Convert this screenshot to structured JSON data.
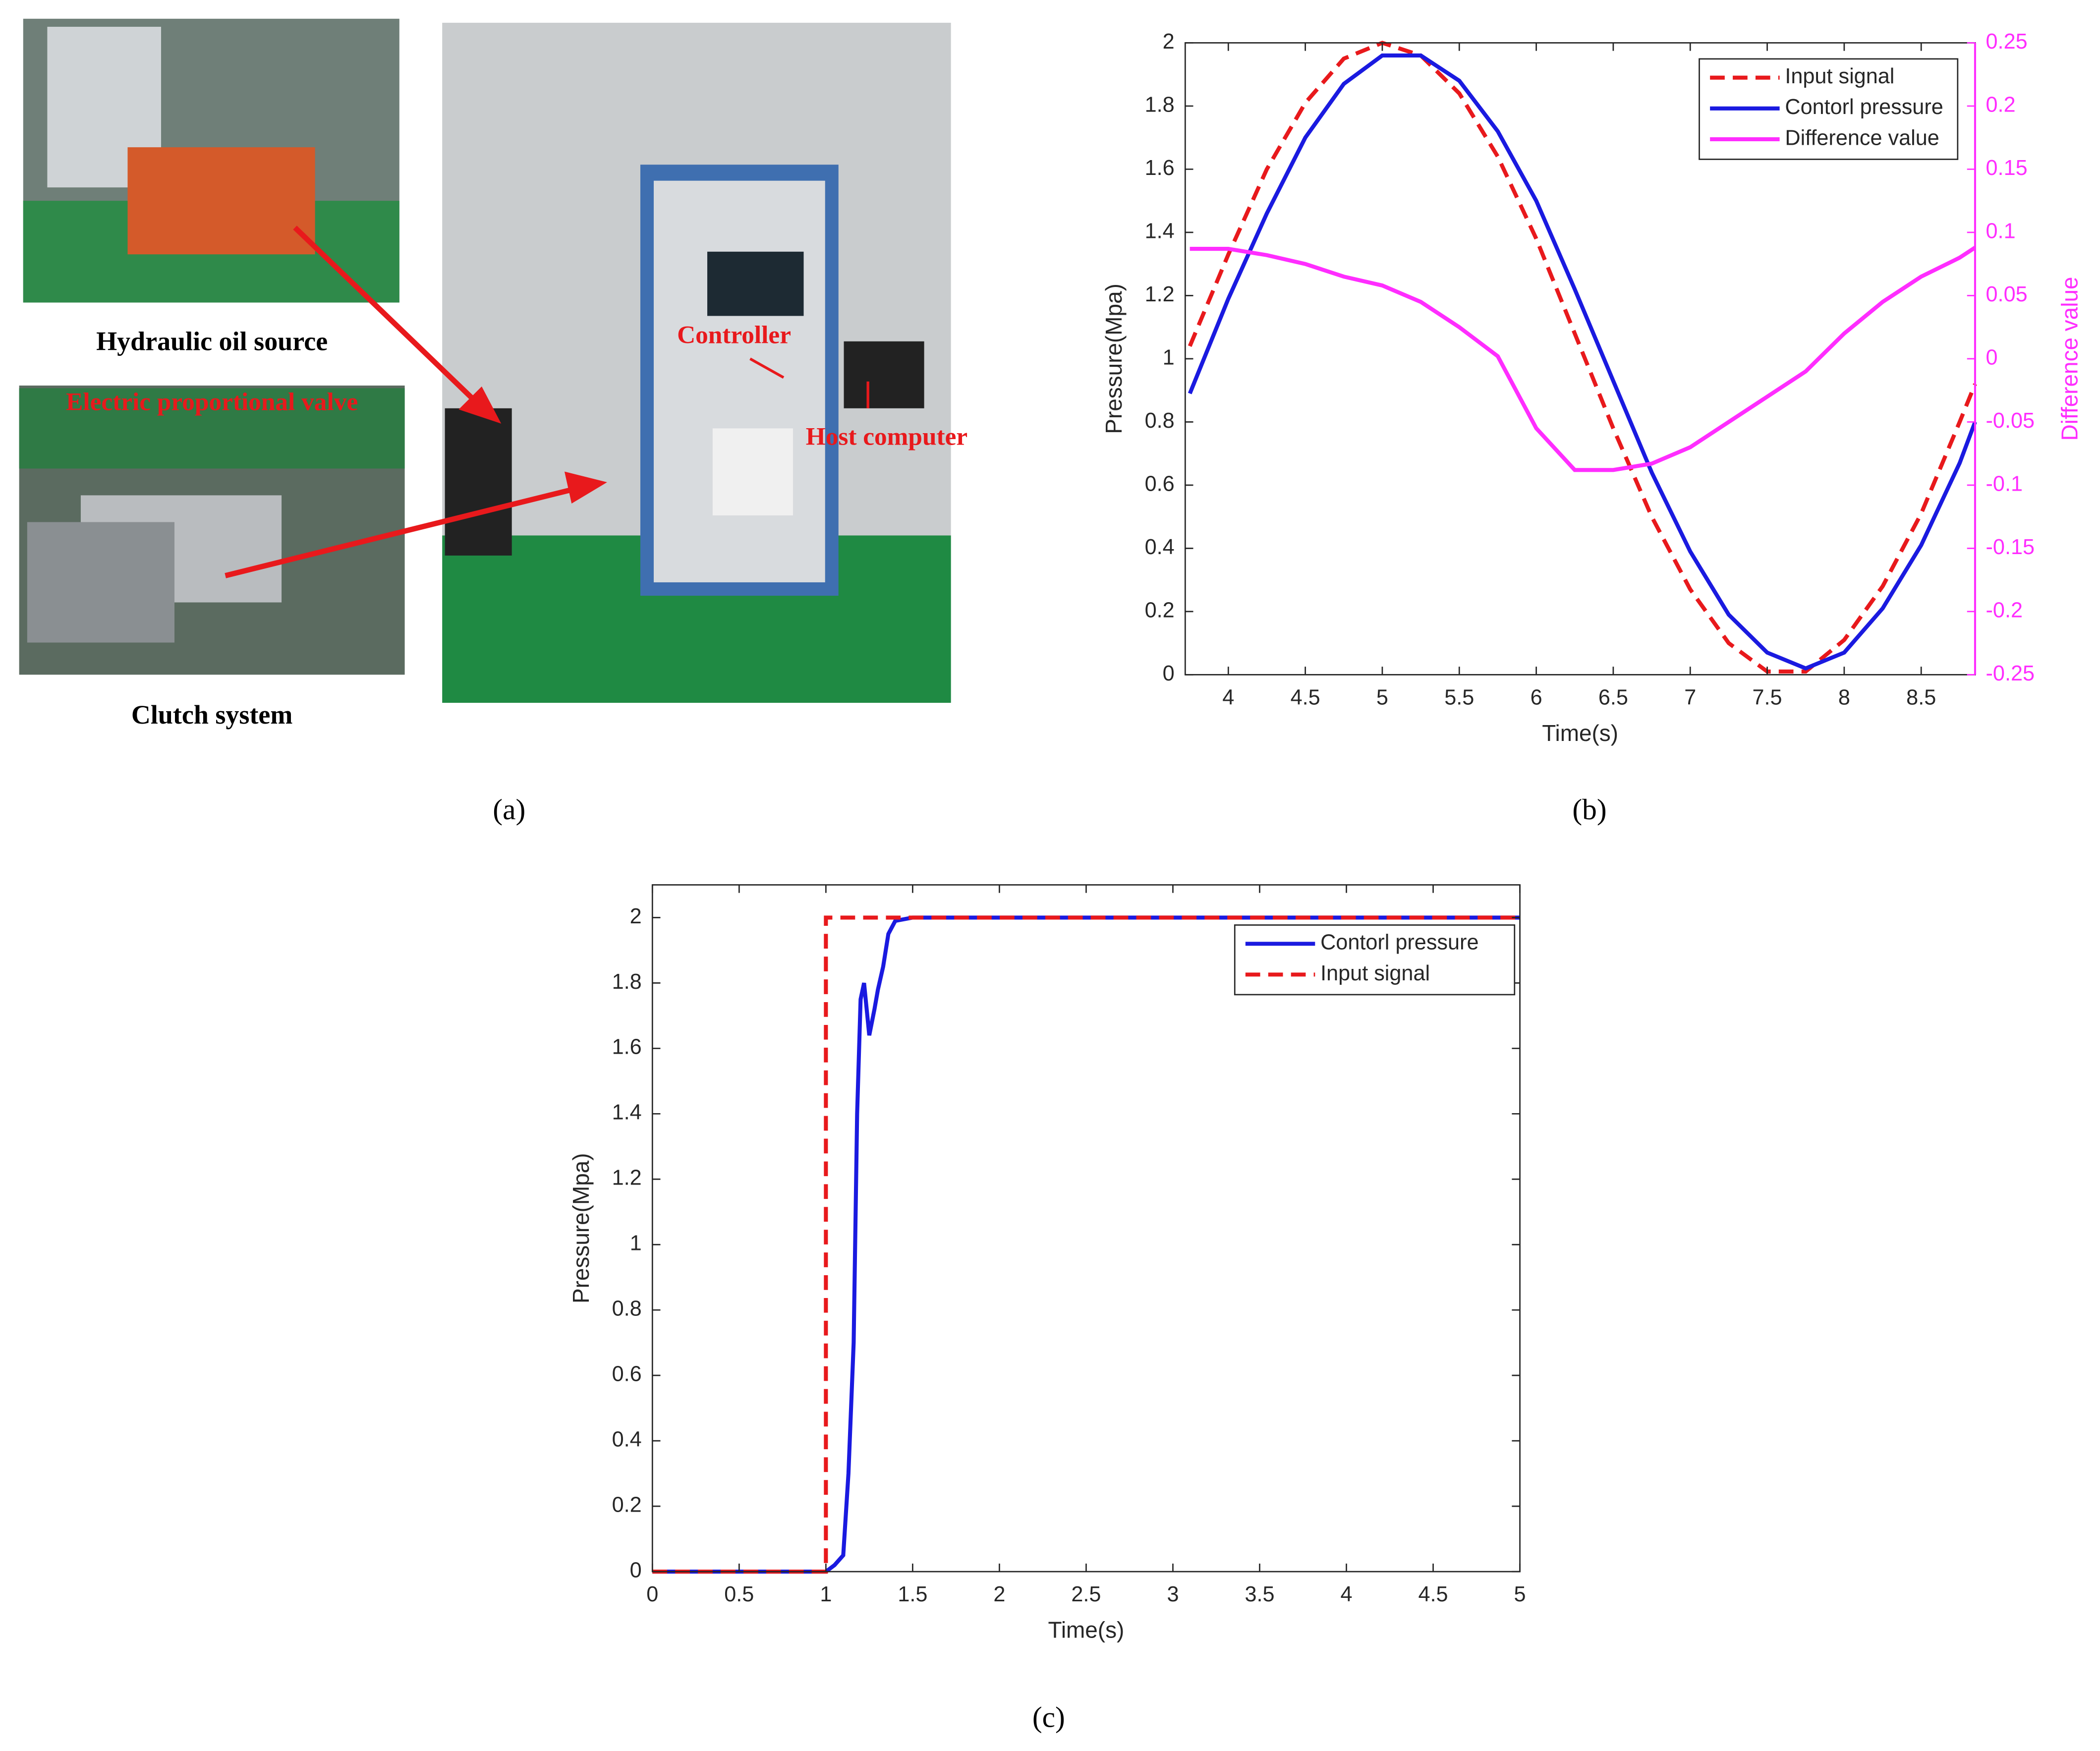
{
  "figure_a": {
    "labels": {
      "oil_source": "Hydraulic oil source",
      "valve": "Electric proportional valve",
      "clutch": "Clutch system",
      "controller": "Controller",
      "host": "Host computer"
    },
    "caption": "(a)"
  },
  "chart_data": [
    {
      "type": "line",
      "caption": "(b)",
      "xlabel": "Time(s)",
      "ylabel": "Pressure(Mpa)",
      "y2label": "Difference value",
      "x": [
        3.75,
        4.0,
        4.25,
        4.5,
        4.75,
        5.0,
        5.25,
        5.5,
        5.75,
        6.0,
        6.25,
        6.5,
        6.75,
        7.0,
        7.25,
        7.5,
        7.75,
        8.0,
        8.25,
        8.5,
        8.75,
        8.85
      ],
      "series": [
        {
          "name": "Input signal",
          "color": "#e8191c",
          "style": "dashed",
          "values": [
            1.04,
            1.33,
            1.6,
            1.81,
            1.95,
            2.0,
            1.96,
            1.84,
            1.64,
            1.38,
            1.08,
            0.78,
            0.5,
            0.27,
            0.1,
            0.01,
            0.01,
            0.11,
            0.28,
            0.51,
            0.8,
            0.92
          ]
        },
        {
          "name": "Contorl pressure",
          "color": "#1a1ae0",
          "style": "solid",
          "values": [
            0.89,
            1.19,
            1.46,
            1.7,
            1.87,
            1.96,
            1.96,
            1.88,
            1.72,
            1.5,
            1.22,
            0.93,
            0.64,
            0.39,
            0.19,
            0.07,
            0.02,
            0.07,
            0.21,
            0.41,
            0.67,
            0.8
          ]
        },
        {
          "name": "Difference value",
          "color": "#ff2dff",
          "style": "solid",
          "axis": "y2",
          "values": [
            0.087,
            0.087,
            0.082,
            0.075,
            0.065,
            0.058,
            0.045,
            0.025,
            0.002,
            -0.055,
            -0.088,
            -0.088,
            -0.083,
            -0.07,
            -0.05,
            -0.03,
            -0.01,
            0.02,
            0.045,
            0.065,
            0.08,
            0.088
          ]
        }
      ],
      "xlim": [
        3.72,
        8.85
      ],
      "xticks": [
        4,
        4.5,
        5,
        5.5,
        6,
        6.5,
        7,
        7.5,
        8,
        8.5
      ],
      "ylim": [
        0,
        2
      ],
      "yticks": [
        0,
        0.2,
        0.4,
        0.6,
        0.8,
        1,
        1.2,
        1.4,
        1.6,
        1.8,
        2
      ],
      "y2lim": [
        -0.25,
        0.25
      ],
      "y2ticks": [
        -0.25,
        -0.2,
        -0.15,
        -0.1,
        -0.05,
        0,
        0.05,
        0.1,
        0.15,
        0.2,
        0.25
      ],
      "y2color": "#ff2dff",
      "grid": false,
      "legend": "northeast"
    },
    {
      "type": "line",
      "caption": "(c)",
      "xlabel": "Time(s)",
      "ylabel": "Pressure(Mpa)",
      "series": [
        {
          "name": "Contorl pressure",
          "color": "#1a1ae0",
          "style": "solid",
          "x": [
            0,
            1,
            1.05,
            1.1,
            1.13,
            1.16,
            1.18,
            1.2,
            1.22,
            1.25,
            1.28,
            1.3,
            1.33,
            1.36,
            1.4,
            1.5,
            5
          ],
          "values": [
            0,
            0,
            0.02,
            0.05,
            0.3,
            0.7,
            1.4,
            1.75,
            1.8,
            1.64,
            1.72,
            1.78,
            1.85,
            1.95,
            1.99,
            2,
            2
          ]
        },
        {
          "name": "Input signal",
          "color": "#e8191c",
          "style": "dashed",
          "x": [
            0,
            1,
            1,
            5
          ],
          "values": [
            0,
            0,
            2,
            2
          ]
        }
      ],
      "xlim": [
        0,
        5
      ],
      "xticks": [
        0,
        0.5,
        1,
        1.5,
        2,
        2.5,
        3,
        3.5,
        4,
        4.5,
        5
      ],
      "ylim": [
        0,
        2.1
      ],
      "yticks": [
        0,
        0.2,
        0.4,
        0.6,
        0.8,
        1,
        1.2,
        1.4,
        1.6,
        1.8,
        2
      ],
      "grid": false,
      "legend": "northeast"
    }
  ]
}
